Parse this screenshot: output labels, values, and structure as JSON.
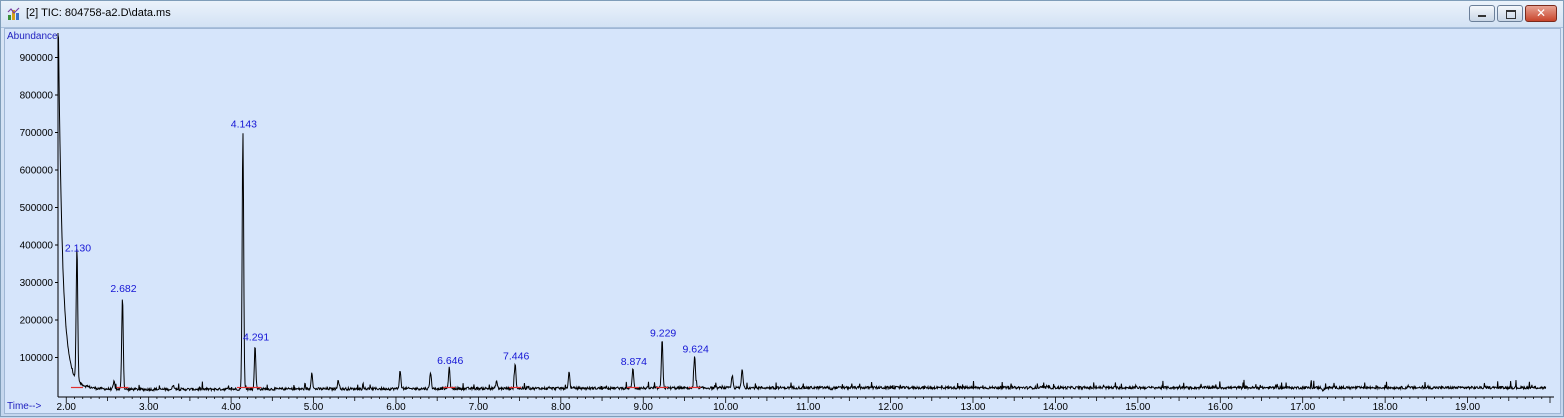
{
  "window": {
    "title": "[2] TIC: 804758-a2.D\\data.ms",
    "icon": "chromatogram-app-icon",
    "buttons": {
      "minimize": "minimize-icon",
      "maximize": "maximize-icon",
      "close": "close-icon"
    }
  },
  "chart_data": {
    "type": "line",
    "ylabel": "Abundance",
    "xlabel": "Time-->",
    "xlim": [
      1.9,
      20.0
    ],
    "ylim": [
      0,
      960000
    ],
    "x_ticks": [
      "2.00",
      "3.00",
      "4.00",
      "5.00",
      "6.00",
      "7.00",
      "8.00",
      "9.00",
      "10.00",
      "11.00",
      "12.00",
      "13.00",
      "14.00",
      "15.00",
      "16.00",
      "17.00",
      "18.00",
      "19.00"
    ],
    "x_tick_values": [
      2,
      3,
      4,
      5,
      6,
      7,
      8,
      9,
      10,
      11,
      12,
      13,
      14,
      15,
      16,
      17,
      18,
      19
    ],
    "y_ticks": [
      "100000",
      "200000",
      "300000",
      "400000",
      "500000",
      "600000",
      "700000",
      "800000",
      "900000"
    ],
    "y_tick_values": [
      100000,
      200000,
      300000,
      400000,
      500000,
      600000,
      700000,
      800000,
      900000
    ],
    "peak_labels": [
      {
        "label": "2.130",
        "x": 2.13,
        "y": 370000
      },
      {
        "label": "2.682",
        "x": 2.682,
        "y": 262000
      },
      {
        "label": "4.143",
        "x": 4.143,
        "y": 700000
      },
      {
        "label": "4.291",
        "x": 4.291,
        "y": 132000
      },
      {
        "label": "6.646",
        "x": 6.646,
        "y": 70000
      },
      {
        "label": "7.446",
        "x": 7.446,
        "y": 82000
      },
      {
        "label": "8.874",
        "x": 8.874,
        "y": 67000
      },
      {
        "label": "9.229",
        "x": 9.229,
        "y": 143000
      },
      {
        "label": "9.624",
        "x": 9.624,
        "y": 100000
      }
    ],
    "extra_peaks": [
      [
        2.58,
        35000
      ],
      [
        3.3,
        28000
      ],
      [
        4.98,
        60000
      ],
      [
        5.3,
        40000
      ],
      [
        6.05,
        65000
      ],
      [
        6.42,
        60000
      ],
      [
        7.22,
        35000
      ],
      [
        7.6,
        22000
      ],
      [
        8.1,
        58000
      ],
      [
        8.55,
        20000
      ],
      [
        10.08,
        48000
      ],
      [
        10.2,
        65000
      ],
      [
        10.6,
        12000
      ],
      [
        11.28,
        10000
      ],
      [
        17.25,
        5000
      ]
    ],
    "colors": {
      "trace": "#000000",
      "labels": "#1515d5",
      "axis_title": "#1f1fbf",
      "baseline_marks": "#e03030"
    }
  }
}
